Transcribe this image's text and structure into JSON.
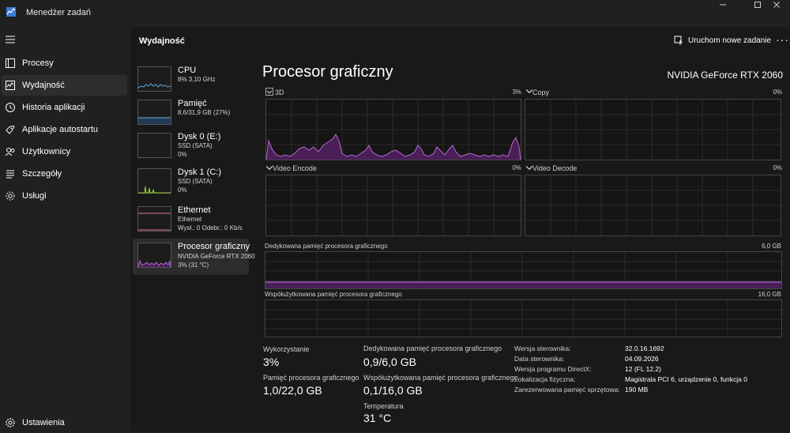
{
  "window": {
    "title": "Menedżer zadań"
  },
  "nav": {
    "items": [
      {
        "label": "Procesy",
        "icon": "processes-icon"
      },
      {
        "label": "Wydajność",
        "icon": "performance-icon"
      },
      {
        "label": "Historia aplikacji",
        "icon": "app-history-icon"
      },
      {
        "label": "Aplikacje autostartu",
        "icon": "startup-apps-icon"
      },
      {
        "label": "Użytkownicy",
        "icon": "users-icon"
      },
      {
        "label": "Szczegóły",
        "icon": "details-icon"
      },
      {
        "label": "Usługi",
        "icon": "services-icon"
      }
    ],
    "settings": "Ustawienia"
  },
  "header": {
    "title": "Wydajność",
    "run_task": "Uruchom nowe zadanie",
    "more": "···"
  },
  "devices": [
    {
      "name": "CPU",
      "line1": "8% 3,10 GHz",
      "line2": ""
    },
    {
      "name": "Pamięć",
      "line1": "8,6/31,9 GB (27%)",
      "line2": ""
    },
    {
      "name": "Dysk 0 (E:)",
      "line1": "SSD (SATA)",
      "line2": "0%"
    },
    {
      "name": "Dysk 1 (C:)",
      "line1": "SSD (SATA)",
      "line2": "0%"
    },
    {
      "name": "Ethernet",
      "line1": "Ethernet",
      "line2": "Wysł.: 0 Odebr.: 0 Kb/s"
    },
    {
      "name": "Procesor graficzny",
      "line1": "NVIDIA GeForce RTX 2060",
      "line2": "3% (31 °C)"
    }
  ],
  "gpu": {
    "title": "Procesor graficzny",
    "name": "NVIDIA GeForce RTX 2060",
    "engines": [
      {
        "label": "3D",
        "value": "3%"
      },
      {
        "label": "Copy",
        "value": "0%"
      },
      {
        "label": "Video Encode",
        "value": "0%"
      },
      {
        "label": "Video Decode",
        "value": "0%"
      }
    ],
    "dedicated": {
      "label": "Dedykowana pamięć procesora graficznego",
      "max": "6,0 GB"
    },
    "shared": {
      "label": "Współużytkowana pamięć procesora graficznego",
      "max": "16,0 GB"
    },
    "stats": {
      "usage_label": "Wykorzystanie",
      "usage_value": "3%",
      "gpu_mem_label": "Pamięć procesora graficznego",
      "gpu_mem_value": "1,0/22,0 GB",
      "ded_label": "Dedykowana pamięć procesora graficznego",
      "ded_value": "0,9/6,0 GB",
      "shared_label": "Współużytkowana pamięć procesora graficznego",
      "shared_value": "0,1/16,0 GB",
      "temp_label": "Temperatura",
      "temp_value": "31 °C"
    },
    "info": [
      {
        "k": "Wersja sterownika:",
        "v": "32.0.16.1692"
      },
      {
        "k": "Data sterownika:",
        "v": "04.09.2026"
      },
      {
        "k": "Wersja programu DirectX:",
        "v": "12 (FL 12.2)"
      },
      {
        "k": "Lokalizacja fizyczna:",
        "v": "Magistrala PCI 6, urządzenie 0, funkcja 0"
      },
      {
        "k": "Zarezerwowana pamięć sprzętowa:",
        "v": "190 MB"
      }
    ]
  },
  "colors": {
    "accent": "#d9a3e6",
    "gpu_line": "#b36bd0",
    "gpu_fill": "#4a1f57",
    "cpu": "#5aa9d6",
    "memory": "#6fa3e0",
    "disk": "#9ccf3a",
    "ethernet": "#d87a8f"
  }
}
